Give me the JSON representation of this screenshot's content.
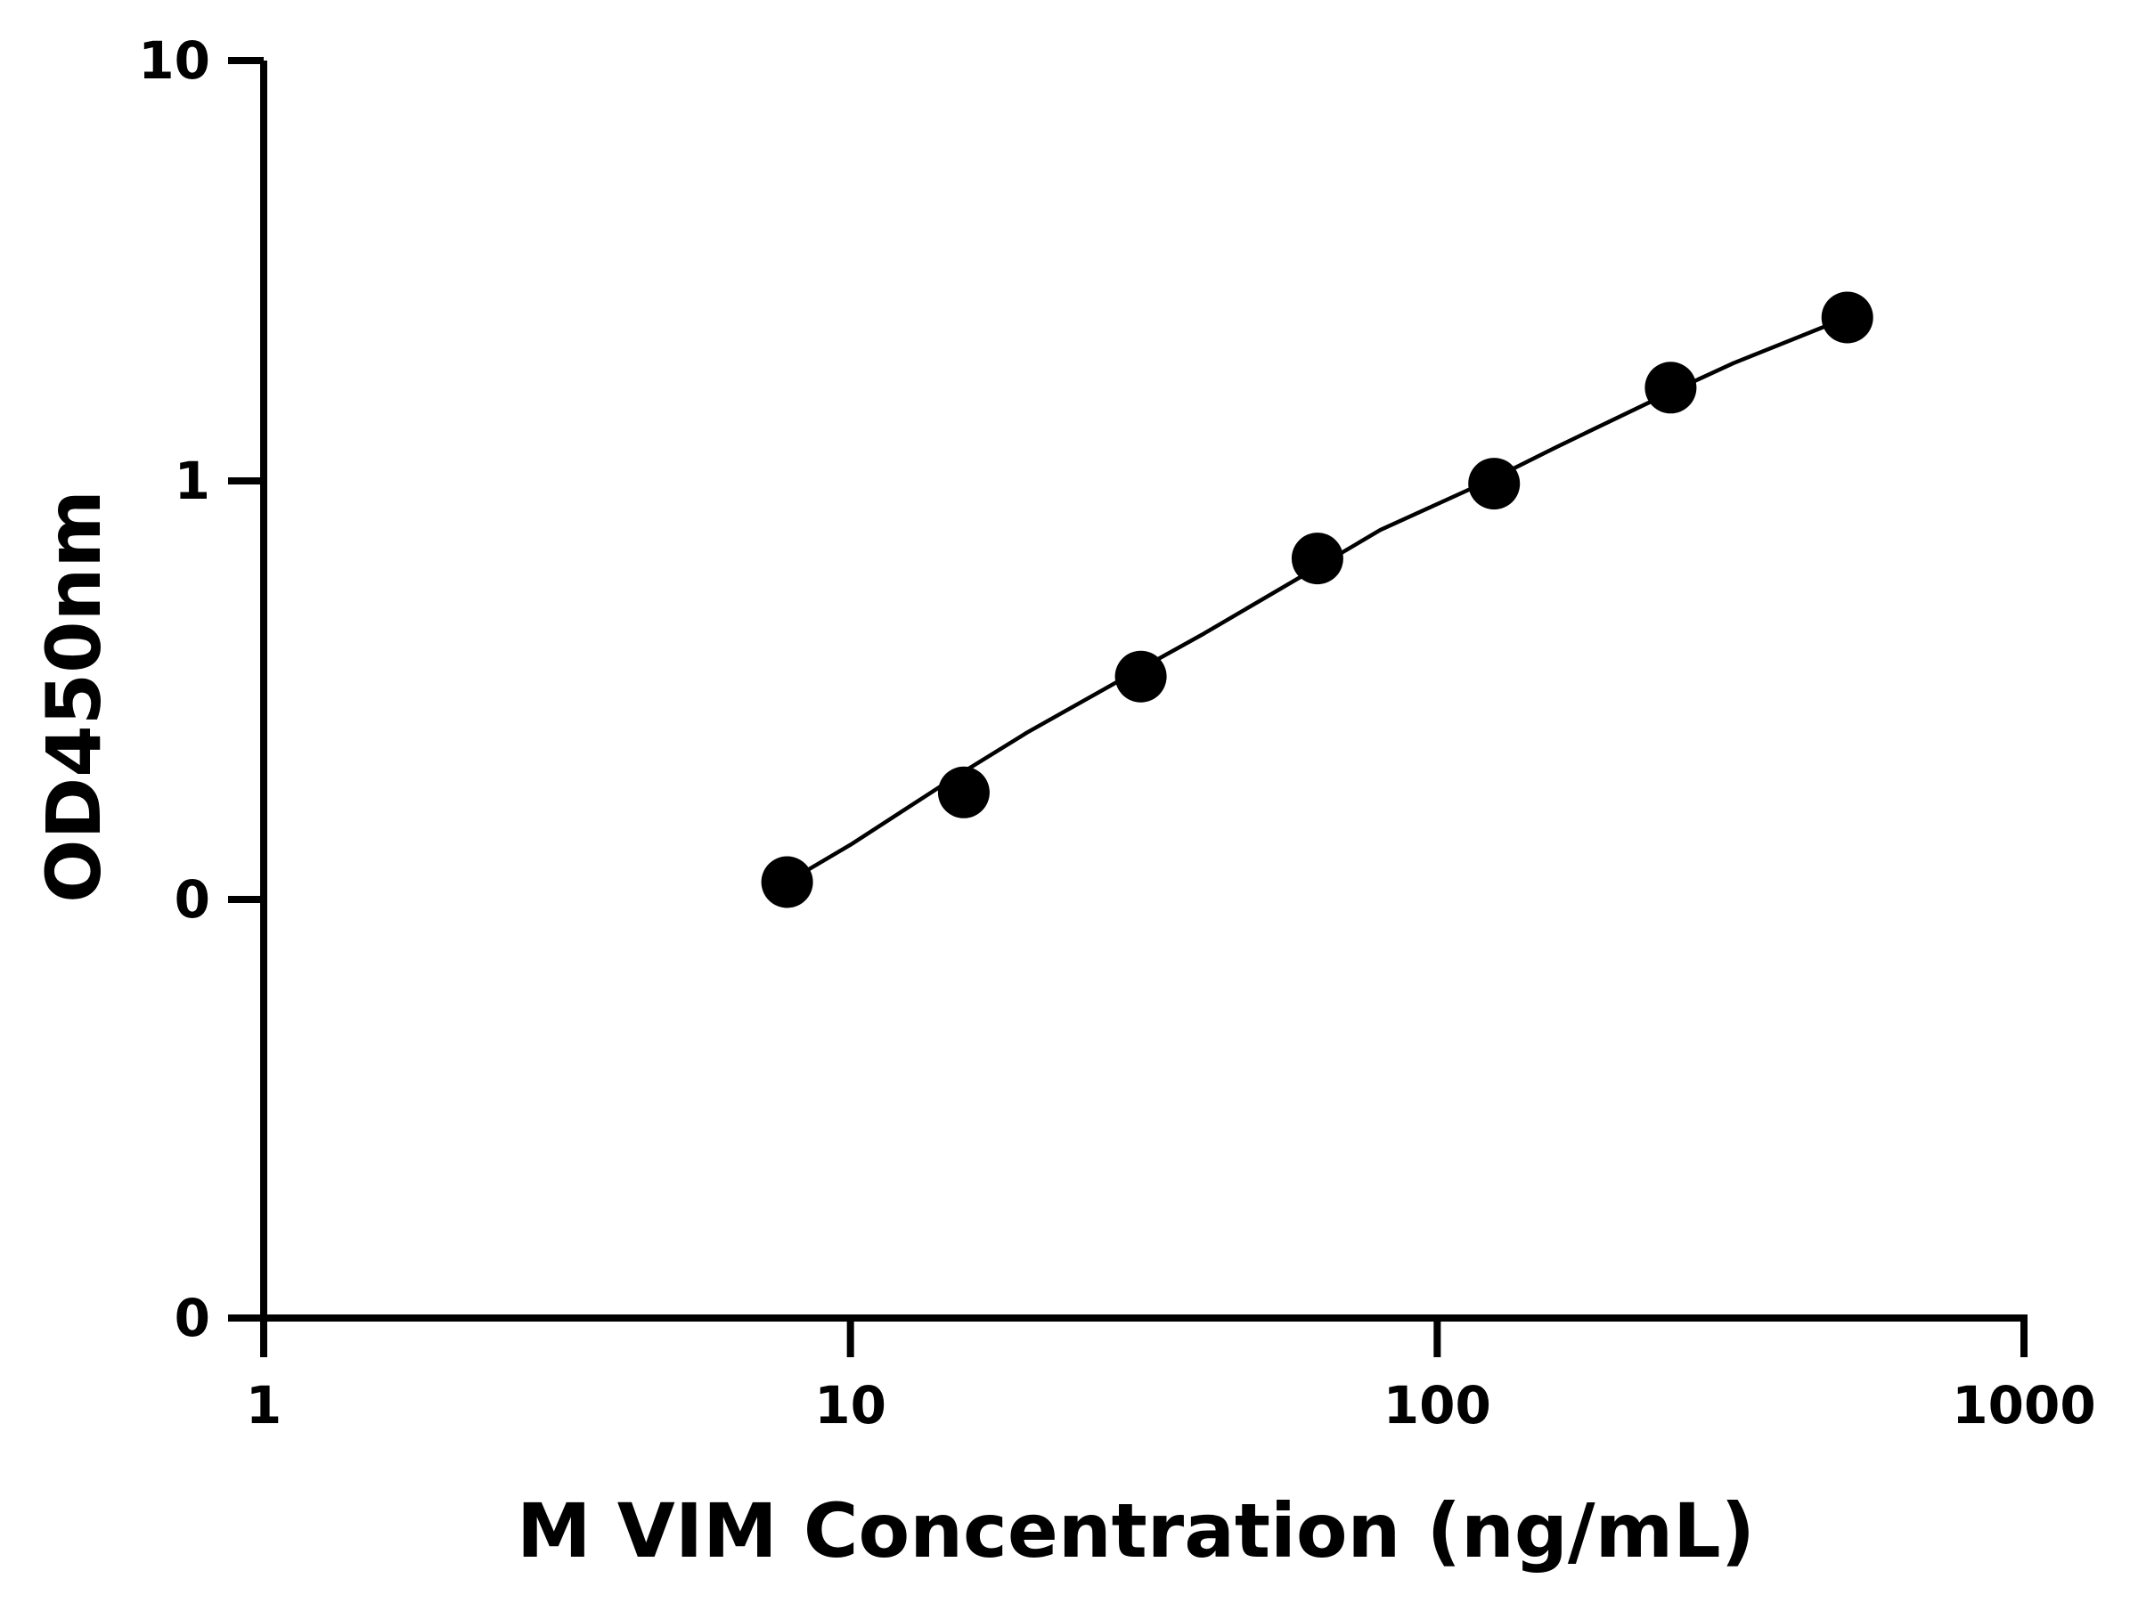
{
  "chart_data": {
    "type": "scatter",
    "title": "",
    "xlabel": "M VIM Concentration (ng/mL)",
    "ylabel": "OD450nm",
    "x_scale": "log",
    "y_scale": "log",
    "xlim": [
      1,
      1000
    ],
    "x_ticks": [
      {
        "value": 1,
        "label": "1"
      },
      {
        "value": 10,
        "label": "10"
      },
      {
        "value": 100,
        "label": "100"
      },
      {
        "value": 1000,
        "label": "1000"
      }
    ],
    "y_ticks": [
      {
        "label": "10"
      },
      {
        "label": "1"
      },
      {
        "label": "0"
      },
      {
        "label": "0"
      }
    ],
    "series": [
      {
        "points": [
          {
            "x": 7.8,
            "y": 0.11
          },
          {
            "x": 15.6,
            "y": 0.18
          },
          {
            "x": 31.25,
            "y": 0.34
          },
          {
            "x": 62.5,
            "y": 0.65
          },
          {
            "x": 125,
            "y": 0.98
          },
          {
            "x": 250,
            "y": 1.66
          },
          {
            "x": 500,
            "y": 2.44
          }
        ],
        "fit_curve": {
          "type": "4PL",
          "x": [
            7.8,
            10,
            15,
            20,
            31.25,
            40,
            62.5,
            80,
            125,
            160,
            250,
            320,
            500
          ],
          "y": [
            0.11,
            0.135,
            0.195,
            0.25,
            0.355,
            0.43,
            0.62,
            0.76,
            1.01,
            1.2,
            1.62,
            1.9,
            2.44
          ]
        },
        "color": "#000000"
      }
    ],
    "grid": false,
    "legend": "none"
  }
}
